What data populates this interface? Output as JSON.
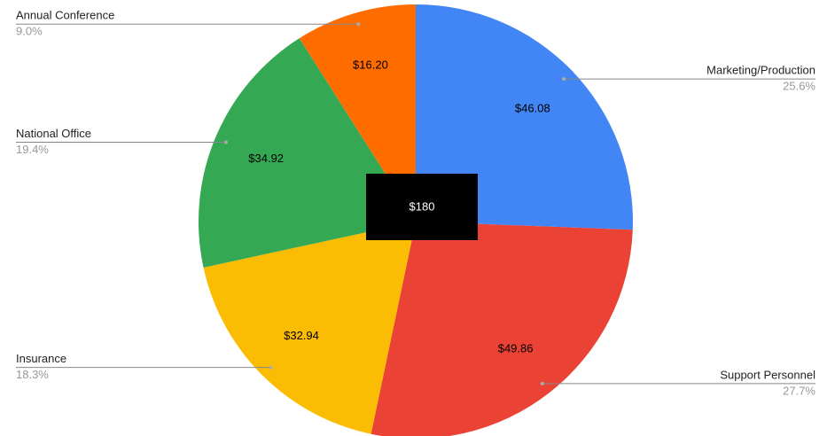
{
  "chart_data": {
    "type": "pie",
    "categories": [
      "Marketing/Production",
      "Support Personnel",
      "Insurance",
      "National Office",
      "Annual Conference"
    ],
    "values": [
      46.08,
      49.86,
      32.94,
      34.92,
      16.2
    ],
    "value_labels": [
      "$46.08",
      "$49.86",
      "$32.94",
      "$34.92",
      "$16.20"
    ],
    "percentage_labels": [
      "25.6%",
      "27.7%",
      "18.3%",
      "19.4%",
      "9.0%"
    ],
    "colors": [
      "#4285f4",
      "#ea4335",
      "#fbbc04",
      "#34a853",
      "#ff6d01"
    ],
    "total_label": "$180"
  }
}
